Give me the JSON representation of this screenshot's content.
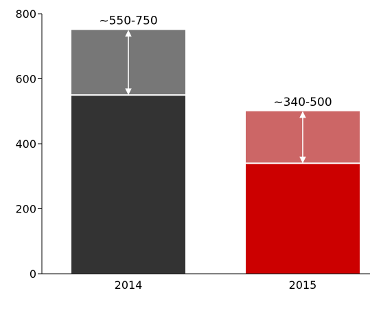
{
  "chart_data": {
    "type": "bar",
    "stacked": true,
    "categories": [
      "2014",
      "2015"
    ],
    "series": [
      {
        "values": [
          550,
          340
        ],
        "colors": [
          "#333333",
          "#cc0000"
        ]
      },
      {
        "values": [
          200,
          160
        ],
        "colors": [
          "#777777",
          "#cc6666"
        ]
      }
    ],
    "range_labels": [
      "~550-750",
      "~340-500"
    ],
    "range_arrows": [
      [
        550,
        750
      ],
      [
        340,
        500
      ]
    ],
    "y_ticks": [
      0,
      200,
      400,
      600,
      800
    ],
    "ylim": [
      0,
      800
    ],
    "grid": false,
    "legend": "none"
  }
}
